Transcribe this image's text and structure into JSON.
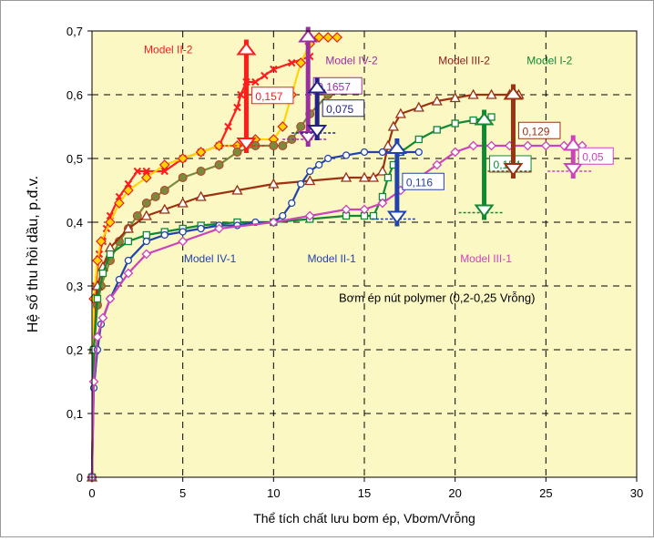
{
  "chart_data": {
    "type": "line",
    "xlabel": "Thể tích chất lưu bơm ép, Vbơm/Vrỗng",
    "ylabel": "Hệ số thu hồi dầu, p.đ.v.",
    "xlim": [
      0,
      30
    ],
    "ylim": [
      0,
      0.7
    ],
    "xticks": [
      "0",
      "5",
      "10",
      "15",
      "20",
      "25",
      "30"
    ],
    "yticks": [
      "0",
      "0,1",
      "0,2",
      "0,3",
      "0,4",
      "0,5",
      "0,6",
      "0,7"
    ],
    "grid": "dashed",
    "plot_background": "#fbf8c4",
    "annotation": "Bơm ép nút polymer (0,2-0,25 Vrỗng)",
    "series": [
      {
        "name": "Model II-2",
        "color": "#ff1c1c",
        "marker": "x",
        "x": [
          0,
          0.1,
          0.2,
          0.4,
          0.6,
          0.8,
          1.0,
          1.5,
          2.0,
          2.5,
          3,
          4,
          5,
          6,
          7,
          7.5,
          8,
          8.2,
          8.5,
          9,
          9.5,
          10,
          11,
          12
        ],
        "y": [
          0,
          0.2,
          0.3,
          0.35,
          0.37,
          0.39,
          0.41,
          0.44,
          0.46,
          0.48,
          0.48,
          0.48,
          0.5,
          0.51,
          0.52,
          0.55,
          0.58,
          0.6,
          0.62,
          0.62,
          0.63,
          0.64,
          0.65,
          0.66
        ]
      },
      {
        "name": "Model IV-2",
        "color": "#ffd400",
        "edge": "#e02020",
        "marker": "diamond",
        "x": [
          0,
          0.1,
          0.3,
          0.5,
          1,
          1.5,
          2,
          3,
          4,
          5,
          6,
          7,
          8,
          9,
          10,
          10.5,
          11,
          11.5,
          12,
          12.5,
          13,
          13.5
        ],
        "y": [
          0,
          0.28,
          0.34,
          0.37,
          0.4,
          0.43,
          0.45,
          0.47,
          0.49,
          0.5,
          0.51,
          0.52,
          0.52,
          0.53,
          0.53,
          0.55,
          0.6,
          0.65,
          0.68,
          0.69,
          0.69,
          0.69
        ]
      },
      {
        "name": "Model IV-1",
        "color": "#7a8a3a",
        "marker": "dot",
        "x": [
          0,
          0.1,
          0.3,
          0.5,
          1,
          1.5,
          2,
          2.5,
          3,
          3.5,
          4,
          5,
          6,
          7,
          8,
          9,
          10,
          10.5,
          11,
          11.5,
          12,
          13,
          14
        ],
        "y": [
          0,
          0.2,
          0.27,
          0.3,
          0.34,
          0.37,
          0.39,
          0.41,
          0.43,
          0.44,
          0.45,
          0.47,
          0.48,
          0.49,
          0.51,
          0.52,
          0.52,
          0.52,
          0.53,
          0.55,
          0.57,
          0.6,
          0.61
        ]
      },
      {
        "name": "Model III-2",
        "color": "#993311",
        "marker": "triangle",
        "x": [
          0,
          0.1,
          0.3,
          0.6,
          1,
          2,
          3,
          4,
          5,
          6,
          8,
          10,
          12,
          14,
          15,
          15.5,
          16,
          16.3,
          16.6,
          17,
          18,
          19,
          20,
          21,
          22,
          23,
          23.5
        ],
        "y": [
          0,
          0.2,
          0.3,
          0.33,
          0.36,
          0.39,
          0.41,
          0.42,
          0.43,
          0.44,
          0.45,
          0.46,
          0.465,
          0.47,
          0.47,
          0.47,
          0.48,
          0.52,
          0.55,
          0.57,
          0.58,
          0.59,
          0.595,
          0.6,
          0.6,
          0.6,
          0.6
        ]
      },
      {
        "name": "Model I-2",
        "color": "#118833",
        "marker": "square",
        "x": [
          0,
          0.1,
          0.3,
          0.6,
          1,
          2,
          3,
          4,
          5,
          6,
          8,
          10,
          12,
          14,
          15,
          15.5,
          16,
          16.3,
          16.6,
          17,
          18,
          19,
          20,
          21,
          22
        ],
        "y": [
          0,
          0.2,
          0.28,
          0.32,
          0.35,
          0.37,
          0.38,
          0.385,
          0.39,
          0.395,
          0.4,
          0.4,
          0.405,
          0.41,
          0.41,
          0.41,
          0.44,
          0.47,
          0.49,
          0.51,
          0.53,
          0.545,
          0.555,
          0.56,
          0.565
        ]
      },
      {
        "name": "Model II-1",
        "color": "#2244aa",
        "marker": "circle",
        "x": [
          0,
          0.1,
          0.3,
          0.5,
          1,
          1.5,
          2,
          3,
          4,
          5,
          6,
          7,
          8,
          9,
          10,
          10.5,
          11,
          11.5,
          12,
          12.5,
          13,
          14,
          15,
          16,
          17,
          18
        ],
        "y": [
          0,
          0.14,
          0.2,
          0.24,
          0.28,
          0.31,
          0.34,
          0.37,
          0.38,
          0.385,
          0.39,
          0.395,
          0.395,
          0.4,
          0.4,
          0.41,
          0.43,
          0.46,
          0.48,
          0.49,
          0.5,
          0.505,
          0.51,
          0.51,
          0.51,
          0.51
        ]
      },
      {
        "name": "Model III-1",
        "color": "#cc44bb",
        "marker": "diamond-open",
        "x": [
          0,
          0.1,
          0.3,
          0.6,
          1,
          2,
          3,
          5,
          7,
          10,
          12,
          14,
          15,
          16,
          17,
          18,
          19,
          20,
          21,
          22,
          23,
          24,
          25,
          26,
          27
        ],
        "y": [
          0,
          0.15,
          0.22,
          0.25,
          0.28,
          0.32,
          0.35,
          0.37,
          0.39,
          0.4,
          0.41,
          0.42,
          0.42,
          0.43,
          0.45,
          0.47,
          0.49,
          0.51,
          0.52,
          0.52,
          0.52,
          0.52,
          0.52,
          0.52,
          0.52
        ]
      }
    ],
    "series_labels": [
      {
        "text": "Model II-2",
        "color": "#ff1c1c",
        "at": [
          4.2,
          0.665
        ]
      },
      {
        "text": "Model IV-2",
        "color": "#9b2f9f",
        "at": [
          14.3,
          0.648
        ]
      },
      {
        "text": "Model III-2",
        "color": "#8b1a1a",
        "at": [
          20.5,
          0.648
        ]
      },
      {
        "text": "Model I-2",
        "color": "#118833",
        "at": [
          25.2,
          0.648
        ]
      },
      {
        "text": "Model IV-1",
        "color": "#2244aa",
        "at": [
          6.5,
          0.337
        ]
      },
      {
        "text": "Model II-1",
        "color": "#2244aa",
        "at": [
          13.2,
          0.337
        ]
      },
      {
        "text": "Model III-1",
        "color": "#cc44bb",
        "at": [
          21.7,
          0.337
        ]
      }
    ],
    "increments": [
      {
        "label": "0,157",
        "color": "#ff1c1c",
        "x": 8.5,
        "y0": 0.52,
        "y1": 0.675
      },
      {
        "label": "0,1657",
        "color": "#9b2f9f",
        "x": 11.9,
        "y0": 0.53,
        "y1": 0.695
      },
      {
        "label": "0,075",
        "color": "#222288",
        "x": 12.4,
        "y0": 0.54,
        "y1": 0.615
      },
      {
        "label": "0,116",
        "color": "#2244aa",
        "x": 16.8,
        "y0": 0.405,
        "y1": 0.52
      },
      {
        "label": "0,154",
        "color": "#118833",
        "x": 21.6,
        "y0": 0.415,
        "y1": 0.565
      },
      {
        "label": "0,129",
        "color": "#993311",
        "x": 23.2,
        "y0": 0.48,
        "y1": 0.605
      },
      {
        "label": "0,05",
        "color": "#cc44bb",
        "x": 26.5,
        "y0": 0.48,
        "y1": 0.525
      }
    ]
  }
}
